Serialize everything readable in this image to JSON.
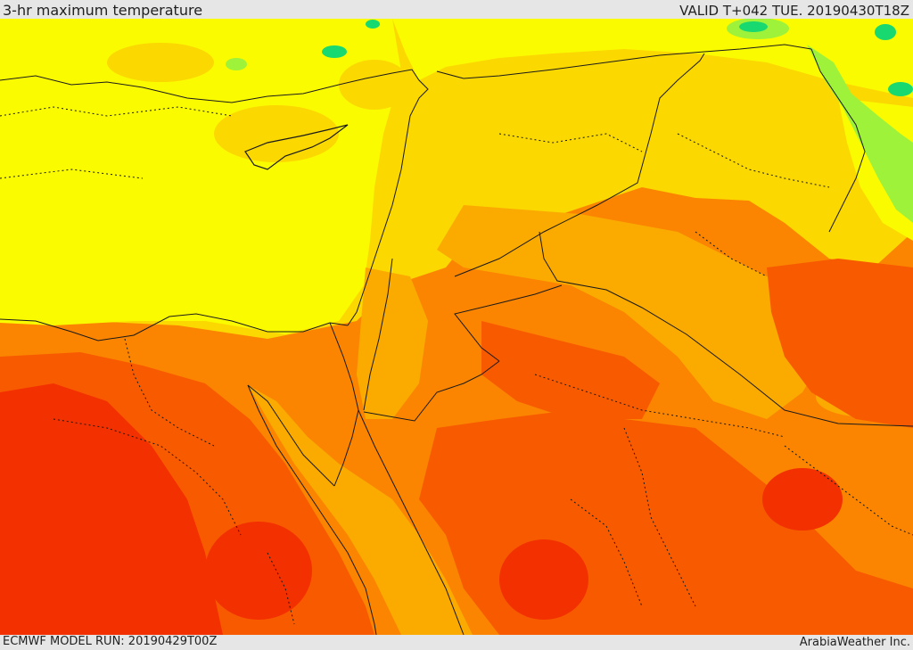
{
  "header": {
    "title": "3-hr maximum temperature",
    "valid": "VALID T+042 TUE. 20190430T18Z"
  },
  "footer": {
    "model_run": "ECMWF MODEL RUN: 20190429T00Z",
    "credit": "ArabiaWeather Inc."
  },
  "map": {
    "region": "Eastern Mediterranean and Middle East",
    "colors": {
      "cool_green": "#18d870",
      "light_green": "#9ef23a",
      "yellow": "#fbfb00",
      "gold": "#fbd800",
      "amber": "#fbab00",
      "orange": "#fb8500",
      "red_orange": "#f85a00",
      "red": "#f23000",
      "border_line": "#1a1a1a"
    }
  }
}
